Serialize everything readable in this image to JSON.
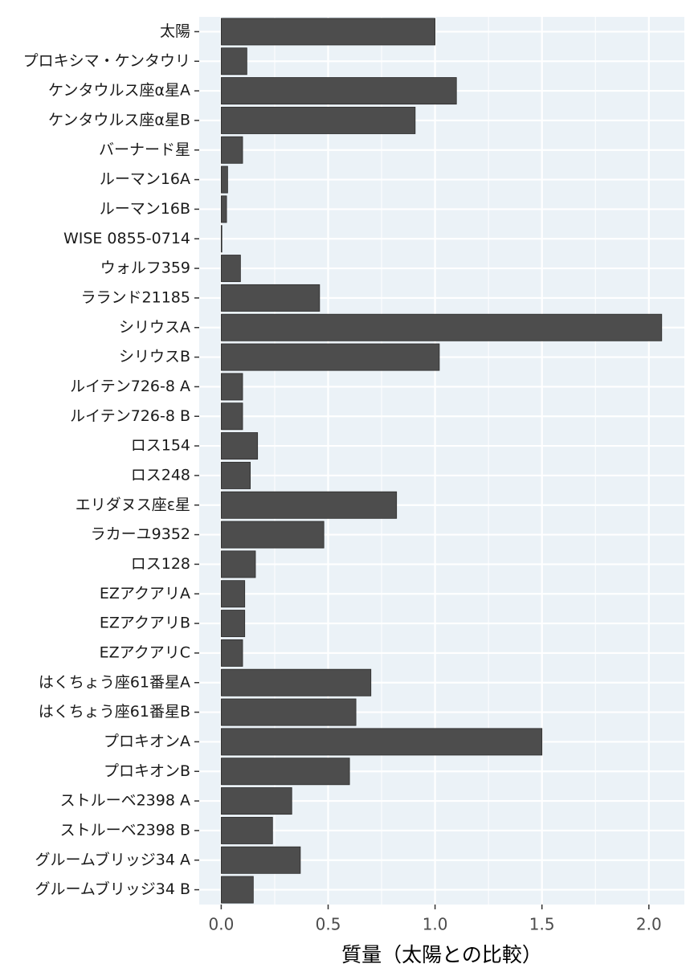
{
  "chart_data": {
    "type": "bar",
    "orientation": "horizontal",
    "x_label": "質量（太陽との比較）",
    "categories": [
      "太陽",
      "プロキシマ・ケンタウリ",
      "ケンタウルス座α星A",
      "ケンタウルス座α星B",
      "バーナード星",
      "ルーマン16A",
      "ルーマン16B",
      "WISE 0855-0714",
      "ウォルフ359",
      "ラランド21185",
      "シリウスA",
      "シリウスB",
      "ルイテン726-8 A",
      "ルイテン726-8 B",
      "ロス154",
      "ロス248",
      "エリダヌス座ε星",
      "ラカーユ9352",
      "ロス128",
      "EZアクアリA",
      "EZアクアリB",
      "EZアクアリC",
      "はくちょう座61番星A",
      "はくちょう座61番星B",
      "プロキオンA",
      "プロキオンB",
      "ストルーベ2398 A",
      "ストルーベ2398 B",
      "グルームブリッジ34 A",
      "グルームブリッジ34 B"
    ],
    "values": [
      1.0,
      0.12,
      1.1,
      0.907,
      0.1,
      0.03,
      0.025,
      0.003,
      0.09,
      0.46,
      2.06,
      1.02,
      0.1,
      0.1,
      0.17,
      0.136,
      0.82,
      0.48,
      0.16,
      0.11,
      0.11,
      0.1,
      0.7,
      0.63,
      1.5,
      0.6,
      0.33,
      0.24,
      0.37,
      0.15
    ],
    "color": "#4d4d4d",
    "xlim": [
      -0.103,
      2.166
    ],
    "xticks": [
      {
        "value": 0,
        "label": "0.0"
      },
      {
        "value": 0.5,
        "label": "0.5"
      },
      {
        "value": 1,
        "label": "1.0"
      },
      {
        "value": 1.5,
        "label": "1.5"
      },
      {
        "value": 2,
        "label": "2.0"
      }
    ],
    "grid": true,
    "panel_color": "#ebf2f7"
  }
}
